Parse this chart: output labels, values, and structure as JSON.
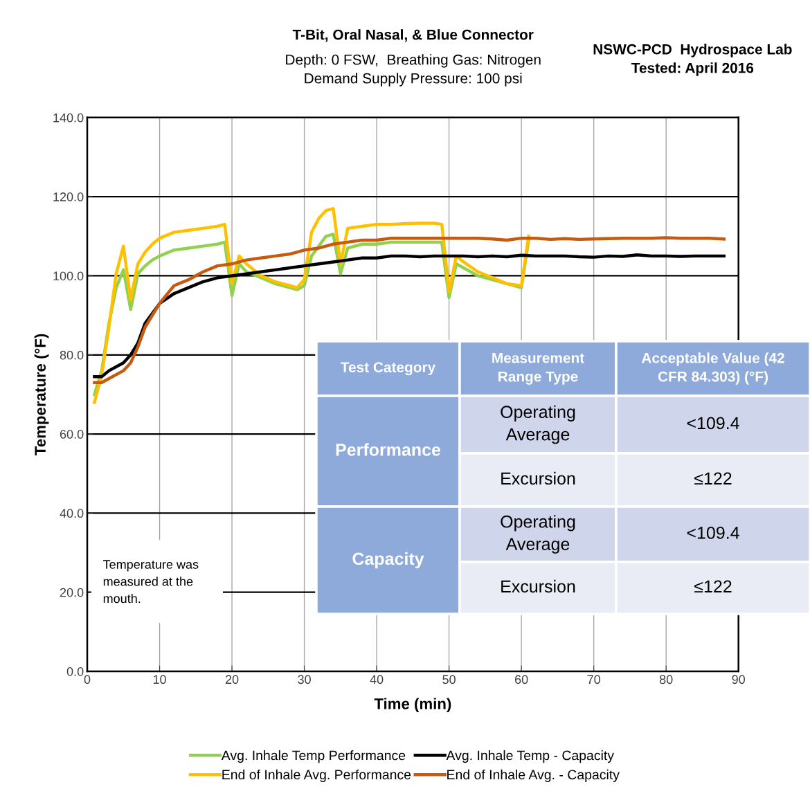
{
  "chart_data": {
    "type": "line",
    "title": "T-Bit, Oral Nasal, & Blue Connector",
    "subtitle": "Depth: 0 FSW,  Breathing Gas: Nitrogen\nDemand Supply Pressure: 100 psi",
    "xlabel": "Time (min)",
    "ylabel": "Temperature (°F)",
    "xlim": [
      0,
      90
    ],
    "xticks": [
      0,
      10,
      20,
      30,
      40,
      50,
      60,
      70,
      80,
      90
    ],
    "ylim": [
      0,
      140
    ],
    "yticks": [
      {
        "value": 0,
        "label": "0.0"
      },
      {
        "value": 20,
        "label": "20.0"
      },
      {
        "value": 40,
        "label": "40.0"
      },
      {
        "value": 60,
        "label": "60.0"
      },
      {
        "value": 80,
        "label": "80.0"
      },
      {
        "value": 100,
        "label": "100.0"
      },
      {
        "value": 120,
        "label": "120.0"
      },
      {
        "value": 140,
        "label": "140.0"
      }
    ],
    "grid": true,
    "legend": "bottom",
    "marker": "none",
    "line_style": "solid",
    "series": [
      {
        "name": "Avg. Inhale Temp Performance",
        "color": "#92d050",
        "x": [
          1,
          2,
          3,
          4,
          5,
          6,
          7,
          8,
          9,
          10,
          12,
          14,
          16,
          18,
          19,
          20,
          21,
          22,
          24,
          26,
          28,
          29,
          30,
          31,
          32,
          33,
          34,
          35,
          36,
          38,
          40,
          42,
          44,
          46,
          48,
          49,
          50,
          51,
          52,
          54,
          56,
          58,
          60,
          61
        ],
        "values": [
          70,
          76,
          88,
          97,
          101.5,
          91.5,
          100.5,
          102.5,
          104,
          105,
          106.5,
          107,
          107.5,
          108,
          108.5,
          95,
          103,
          101,
          99.5,
          98,
          97,
          96.5,
          97.5,
          105,
          107.5,
          110,
          110.5,
          100.5,
          107,
          108,
          108,
          108.5,
          108.5,
          108.5,
          108.5,
          108.5,
          94.5,
          103,
          102,
          100,
          99,
          98,
          97,
          109
        ]
      },
      {
        "name": "End of Inhale Avg. Performance",
        "color": "#ffc000",
        "x": [
          1,
          2,
          3,
          4,
          5,
          6,
          7,
          8,
          9,
          10,
          12,
          14,
          16,
          18,
          19,
          20,
          21,
          22,
          24,
          26,
          28,
          29,
          30,
          31,
          32,
          33,
          34,
          35,
          36,
          38,
          40,
          42,
          44,
          46,
          48,
          49,
          50,
          51,
          52,
          54,
          56,
          58,
          60,
          61
        ],
        "values": [
          68,
          75,
          87,
          100.5,
          107.5,
          94,
          103,
          106,
          108,
          109.5,
          111,
          111.5,
          112,
          112.5,
          113,
          98,
          105,
          103,
          100,
          98.5,
          97.5,
          97,
          99,
          111,
          114.5,
          116.5,
          117,
          103,
          112,
          112.5,
          113,
          113,
          113.2,
          113.3,
          113.3,
          113,
          96,
          105,
          103.5,
          101,
          99.5,
          98,
          97.5,
          110
        ]
      },
      {
        "name": "Avg. Inhale Temp - Capacity",
        "color": "#000000",
        "x": [
          1,
          2,
          3,
          5,
          6,
          7,
          8,
          9,
          10,
          12,
          14,
          16,
          18,
          20,
          22,
          24,
          26,
          28,
          30,
          32,
          34,
          36,
          38,
          40,
          42,
          44,
          46,
          48,
          50,
          52,
          54,
          56,
          58,
          60,
          62,
          64,
          66,
          68,
          70,
          72,
          74,
          76,
          78,
          80,
          82,
          84,
          86,
          88
        ],
        "values": [
          74.5,
          74.5,
          76,
          78,
          80,
          83,
          88,
          90.5,
          93,
          95.5,
          97,
          98.5,
          99.5,
          100,
          100.5,
          101,
          101.5,
          102,
          102.5,
          103,
          103.5,
          104,
          104.5,
          104.5,
          105,
          105,
          104.8,
          105,
          105,
          105,
          104.8,
          105,
          104.8,
          105.2,
          105,
          105,
          105,
          104.8,
          104.7,
          105,
          104.9,
          105.3,
          105,
          105,
          104.9,
          105,
          105,
          105
        ]
      },
      {
        "name": "End of Inhale Avg. - Capacity",
        "color": "#c55a11",
        "x": [
          1,
          2,
          3,
          5,
          6,
          7,
          8,
          9,
          10,
          12,
          14,
          16,
          18,
          20,
          22,
          24,
          26,
          28,
          30,
          32,
          34,
          36,
          38,
          40,
          42,
          44,
          46,
          48,
          50,
          52,
          54,
          56,
          58,
          60,
          62,
          64,
          66,
          68,
          70,
          72,
          74,
          76,
          78,
          80,
          82,
          84,
          86,
          88
        ],
        "values": [
          73,
          73,
          74,
          76,
          78,
          82,
          87,
          90,
          93,
          97.5,
          99,
          101,
          102.5,
          103,
          104,
          104.5,
          105,
          105.5,
          106.5,
          107,
          108,
          108.5,
          109,
          109,
          109.5,
          109.5,
          109.5,
          109.5,
          109.5,
          109.5,
          109.5,
          109.3,
          109,
          109.5,
          109.5,
          109.2,
          109.4,
          109.2,
          109.3,
          109.4,
          109.5,
          109.5,
          109.5,
          109.6,
          109.5,
          109.5,
          109.5,
          109.3
        ]
      }
    ],
    "annotations": [
      "NSWC-PCD  Hydrospace Lab\nTested: April 2016",
      "Temperature was\nmeasured at the\nmouth.",
      "Test Category",
      "Measurement\nRange Type",
      "Acceptable Value (42\nCFR 84.303) (°F)",
      "Performance",
      "Operating\nAverage",
      "<109.4",
      "Excursion",
      "≤122",
      "Capacity",
      "Operating\nAverage",
      "<109.4",
      "Excursion",
      "≤122"
    ]
  }
}
